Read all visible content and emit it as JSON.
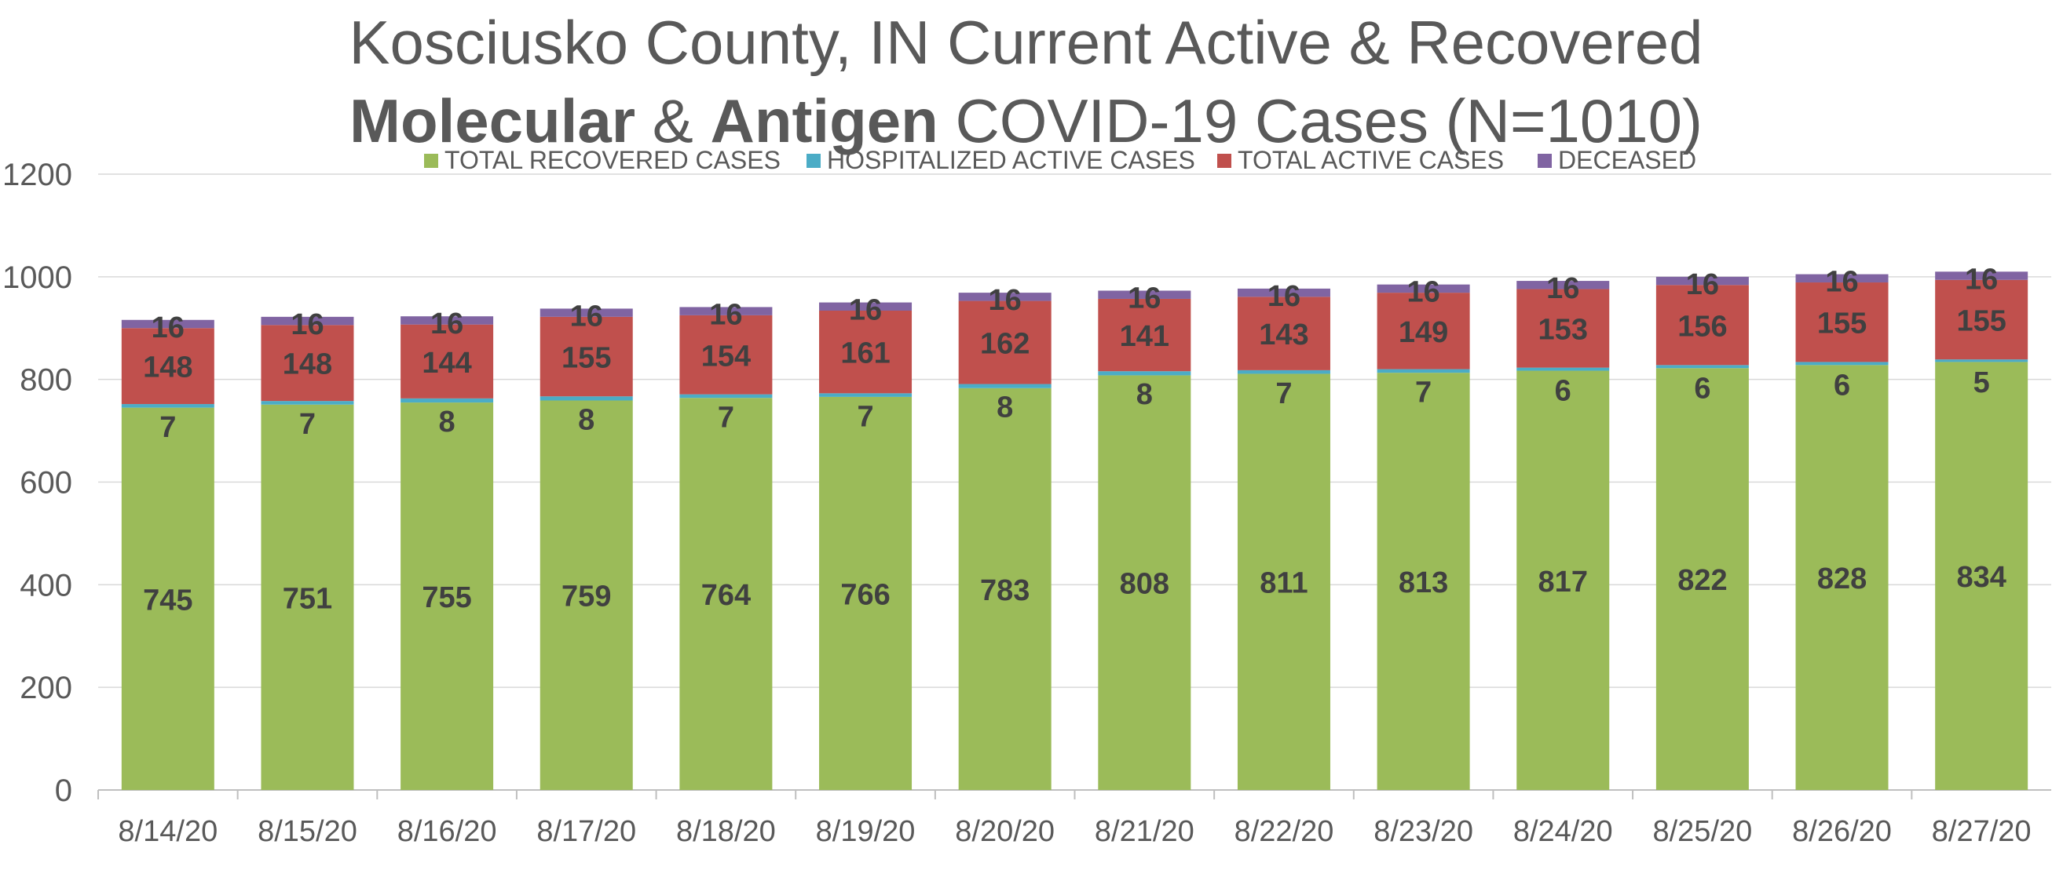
{
  "chart_data": {
    "type": "bar",
    "stacked": true,
    "title_lines": [
      [
        {
          "text": "Kosciusko County, IN Current Active & Recovered",
          "bold": false
        }
      ],
      [
        {
          "text": "Molecular",
          "bold": true
        },
        {
          "text": " & ",
          "bold": false
        },
        {
          "text": "Antigen",
          "bold": true
        },
        {
          "text": " COVID-19 Cases (N=1010)",
          "bold": false
        }
      ]
    ],
    "categories": [
      "8/14/20",
      "8/15/20",
      "8/16/20",
      "8/17/20",
      "8/18/20",
      "8/19/20",
      "8/20/20",
      "8/21/20",
      "8/22/20",
      "8/23/20",
      "8/24/20",
      "8/25/20",
      "8/26/20",
      "8/27/20"
    ],
    "series": [
      {
        "name": "TOTAL RECOVERED CASES",
        "color": "#9BBB59",
        "values": [
          745,
          751,
          755,
          759,
          764,
          766,
          783,
          808,
          811,
          813,
          817,
          822,
          828,
          834
        ]
      },
      {
        "name": "HOSPITALIZED ACTIVE CASES",
        "color": "#4BACC6",
        "values": [
          7,
          7,
          8,
          8,
          7,
          7,
          8,
          8,
          7,
          7,
          6,
          6,
          6,
          5
        ]
      },
      {
        "name": "TOTAL ACTIVE CASES",
        "color": "#C0504D",
        "values": [
          148,
          148,
          144,
          155,
          154,
          161,
          162,
          141,
          143,
          149,
          153,
          156,
          155,
          155
        ]
      },
      {
        "name": "DECEASED",
        "color": "#8064A2",
        "values": [
          16,
          16,
          16,
          16,
          16,
          16,
          16,
          16,
          16,
          16,
          16,
          16,
          16,
          16
        ]
      }
    ],
    "ylim": [
      0,
      1200
    ],
    "yticks": [
      0,
      200,
      400,
      600,
      800,
      1000,
      1200
    ],
    "grid": true,
    "legend_position": "top"
  }
}
